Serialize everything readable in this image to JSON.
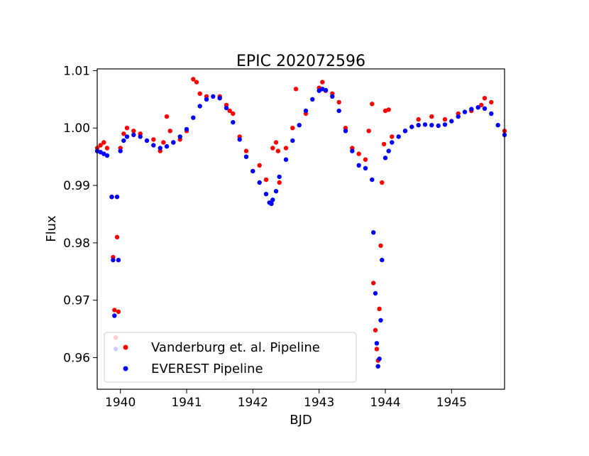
{
  "chart_data": {
    "type": "scatter",
    "title": "EPIC 202072596",
    "xlabel": "BJD",
    "ylabel": "Flux",
    "xlim": [
      1939.65,
      1945.8
    ],
    "ylim": [
      0.9545,
      1.0103
    ],
    "xticks": [
      1940,
      1941,
      1942,
      1943,
      1944,
      1945
    ],
    "yticks": [
      0.96,
      0.97,
      0.98,
      0.99,
      1.0,
      1.01
    ],
    "xtick_labels": [
      "1940",
      "1941",
      "1942",
      "1943",
      "1944",
      "1945"
    ],
    "ytick_labels": [
      "0.96",
      "0.97",
      "0.98",
      "0.99",
      "1.00",
      "1.01"
    ],
    "grid": false,
    "legend_position": "lower-left",
    "series": [
      {
        "name": "Vanderburg et. al. Pipeline",
        "color": "#ff0000",
        "x": [
          1939.65,
          1939.7,
          1939.75,
          1939.8,
          1939.87,
          1939.89,
          1939.91,
          1939.93,
          1939.95,
          1939.97,
          1940.0,
          1940.05,
          1940.1,
          1940.2,
          1940.3,
          1940.5,
          1940.6,
          1940.65,
          1940.7,
          1940.75,
          1940.8,
          1940.9,
          1941.0,
          1941.1,
          1941.15,
          1941.2,
          1941.3,
          1941.5,
          1941.6,
          1941.65,
          1941.7,
          1941.8,
          1941.9,
          1942.0,
          1942.1,
          1942.2,
          1942.3,
          1942.35,
          1942.38,
          1942.4,
          1942.5,
          1942.6,
          1942.65,
          1942.8,
          1943.0,
          1943.05,
          1943.1,
          1943.2,
          1943.3,
          1943.4,
          1943.5,
          1943.6,
          1943.7,
          1943.75,
          1943.8,
          1943.82,
          1943.85,
          1943.87,
          1943.89,
          1943.91,
          1943.93,
          1943.95,
          1943.98,
          1944.0,
          1944.05,
          1944.1,
          1944.3,
          1944.5,
          1944.7,
          1944.9,
          1945.1,
          1945.3,
          1945.45,
          1945.5,
          1945.6,
          1945.8
        ],
        "y": [
          0.9965,
          0.997,
          0.9975,
          0.9965,
          0.988,
          0.9775,
          0.9683,
          0.9635,
          0.981,
          0.968,
          0.9965,
          0.999,
          1.0,
          0.9995,
          0.999,
          0.998,
          0.996,
          0.9975,
          1.002,
          0.9995,
          0.9975,
          0.998,
          0.9995,
          1.0085,
          1.008,
          1.006,
          1.0055,
          1.0055,
          1.004,
          1.003,
          1.0025,
          0.9985,
          0.996,
          0.9925,
          0.9935,
          0.991,
          0.9965,
          0.9975,
          0.996,
          0.9905,
          0.9965,
          1.0,
          1.0068,
          1.0025,
          1.007,
          1.008,
          1.0065,
          1.006,
          1.0045,
          1.0,
          0.9965,
          0.9955,
          0.9945,
          0.9995,
          1.0042,
          0.973,
          0.9648,
          0.9615,
          0.9595,
          0.9685,
          0.9795,
          0.9905,
          0.9972,
          1.003,
          1.0032,
          0.9985,
          0.9995,
          1.0015,
          1.002,
          1.0015,
          1.0025,
          1.003,
          1.004,
          1.0052,
          1.0045,
          0.9995
        ]
      },
      {
        "name": "EVEREST Pipeline",
        "color": "#0000ff",
        "x": [
          1939.65,
          1939.7,
          1939.75,
          1939.8,
          1939.87,
          1939.89,
          1939.91,
          1939.93,
          1939.95,
          1939.97,
          1940.0,
          1940.05,
          1940.1,
          1940.2,
          1940.3,
          1940.4,
          1940.5,
          1940.6,
          1940.7,
          1940.8,
          1940.9,
          1941.0,
          1941.1,
          1941.2,
          1941.3,
          1941.4,
          1941.5,
          1941.6,
          1941.7,
          1941.8,
          1941.9,
          1942.0,
          1942.1,
          1942.2,
          1942.25,
          1942.28,
          1942.3,
          1942.35,
          1942.4,
          1942.5,
          1942.6,
          1942.7,
          1942.8,
          1942.9,
          1943.0,
          1943.05,
          1943.1,
          1943.2,
          1943.3,
          1943.4,
          1943.5,
          1943.6,
          1943.7,
          1943.8,
          1943.82,
          1943.85,
          1943.87,
          1943.89,
          1943.91,
          1943.93,
          1943.95,
          1944.0,
          1944.05,
          1944.1,
          1944.2,
          1944.3,
          1944.4,
          1944.5,
          1944.6,
          1944.7,
          1944.8,
          1944.9,
          1945.0,
          1945.1,
          1945.2,
          1945.3,
          1945.4,
          1945.5,
          1945.6,
          1945.7,
          1945.8
        ],
        "y": [
          0.996,
          0.9958,
          0.9955,
          0.9952,
          0.988,
          0.977,
          0.9673,
          0.9615,
          0.988,
          0.977,
          0.996,
          0.9978,
          0.9985,
          0.9988,
          0.9985,
          0.9978,
          0.997,
          0.9965,
          0.9968,
          0.9975,
          0.9985,
          0.9998,
          1.0018,
          1.0038,
          1.005,
          1.0055,
          1.0052,
          1.0035,
          1.001,
          0.998,
          0.995,
          0.9925,
          0.9905,
          0.9885,
          0.987,
          0.9868,
          0.9875,
          0.989,
          0.9915,
          0.9945,
          0.9978,
          1.0005,
          1.003,
          1.005,
          1.0065,
          1.0068,
          1.0066,
          1.0055,
          1.003,
          0.9995,
          0.996,
          0.9935,
          0.993,
          0.991,
          0.9818,
          0.9712,
          0.9625,
          0.9585,
          0.9598,
          0.9665,
          0.977,
          0.9948,
          0.996,
          0.9975,
          0.9985,
          0.9995,
          1.0002,
          1.0005,
          1.0006,
          1.0005,
          1.0004,
          1.0006,
          1.0012,
          1.002,
          1.0028,
          1.0033,
          1.0036,
          1.0034,
          1.0025,
          1.0005,
          0.9988
        ]
      }
    ]
  }
}
